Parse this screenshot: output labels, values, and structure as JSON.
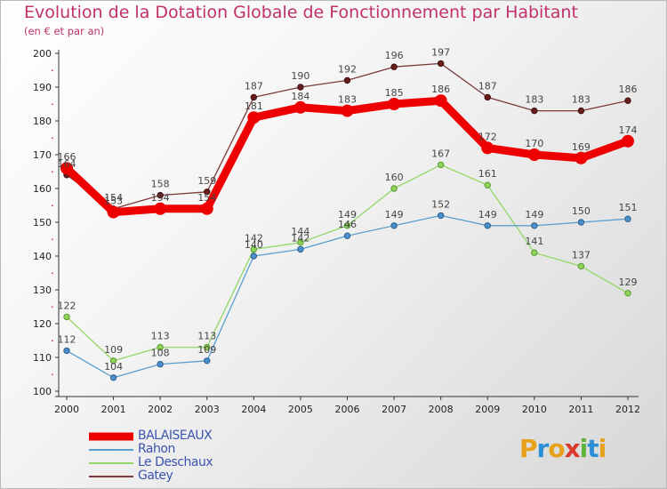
{
  "title": "Evolution de la Dotation Globale de Fonctionnement par Habitant",
  "subtitle": "(en € et par an)",
  "brand": {
    "letters": [
      "P",
      "r",
      "o",
      "x",
      "i",
      "t",
      "i"
    ],
    "colors": [
      "#e8a11a",
      "#2c8fd6",
      "#e8a11a",
      "#d93a2a",
      "#5fb43c",
      "#2c8fd6",
      "#e8a11a"
    ]
  },
  "chart_data": {
    "type": "line",
    "title": "Evolution de la Dotation Globale de Fonctionnement par Habitant",
    "subtitle": "(en € et par an)",
    "categories": [
      "2000",
      "2001",
      "2002",
      "2003",
      "2004",
      "2005",
      "2006",
      "2007",
      "2008",
      "2009",
      "2010",
      "2011",
      "2012"
    ],
    "ylim": [
      100,
      200
    ],
    "yticks": [
      100,
      110,
      120,
      130,
      140,
      150,
      160,
      170,
      180,
      190,
      200
    ],
    "grid": false,
    "legend_position": "bottom-left",
    "series": [
      {
        "name": "BALAISEAUX",
        "color": "#ee0000",
        "values": [
          166,
          153,
          154,
          154,
          181,
          184,
          183,
          185,
          186,
          172,
          170,
          169,
          174
        ]
      },
      {
        "name": "Rahon",
        "color": "#5a9fd0",
        "values": [
          112,
          104,
          108,
          109,
          140,
          142,
          146,
          149,
          152,
          149,
          149,
          150,
          151
        ]
      },
      {
        "name": "Le Deschaux",
        "color": "#93d766",
        "values": [
          122,
          109,
          113,
          113,
          142,
          144,
          149,
          160,
          167,
          161,
          141,
          137,
          129
        ]
      },
      {
        "name": "Gatey",
        "color": "#7a3a3a",
        "values": [
          164,
          154,
          158,
          159,
          187,
          190,
          192,
          196,
          197,
          187,
          183,
          183,
          186
        ]
      }
    ]
  }
}
